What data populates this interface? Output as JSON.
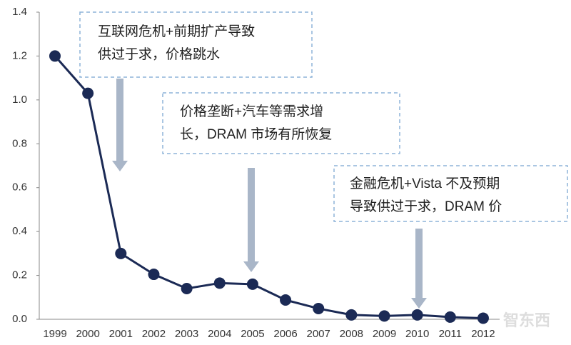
{
  "chart_data": {
    "type": "line",
    "categories": [
      "1999",
      "2000",
      "2001",
      "2002",
      "2003",
      "2004",
      "2005",
      "2006",
      "2007",
      "2008",
      "2009",
      "2010",
      "2011",
      "2012"
    ],
    "series": [
      {
        "color": "#1b2a55",
        "values": [
          1.2,
          1.03,
          0.3,
          0.205,
          0.14,
          0.165,
          0.16,
          0.088,
          0.049,
          0.02,
          0.015,
          0.02,
          0.01,
          0.005
        ]
      }
    ],
    "ylim": [
      0,
      1.4
    ],
    "yticks": [
      {
        "value": 0,
        "label": "0.0"
      },
      0.2,
      0.4,
      0.6,
      0.8,
      {
        "value": 1,
        "label": "1.0"
      },
      1.2,
      1.4
    ],
    "annotations": [
      {
        "lines": [
          "互联网危机+前期扩产导致",
          "供过于求，价格跳水"
        ]
      },
      {
        "lines": [
          "价格垄断+汽车等需求增",
          "长，DRAM 市场有所恢复"
        ]
      },
      {
        "lines": [
          "金融危机+Vista 不及预期",
          "导致供过于求，DRAM 价"
        ]
      }
    ],
    "watermark": "智东西"
  }
}
